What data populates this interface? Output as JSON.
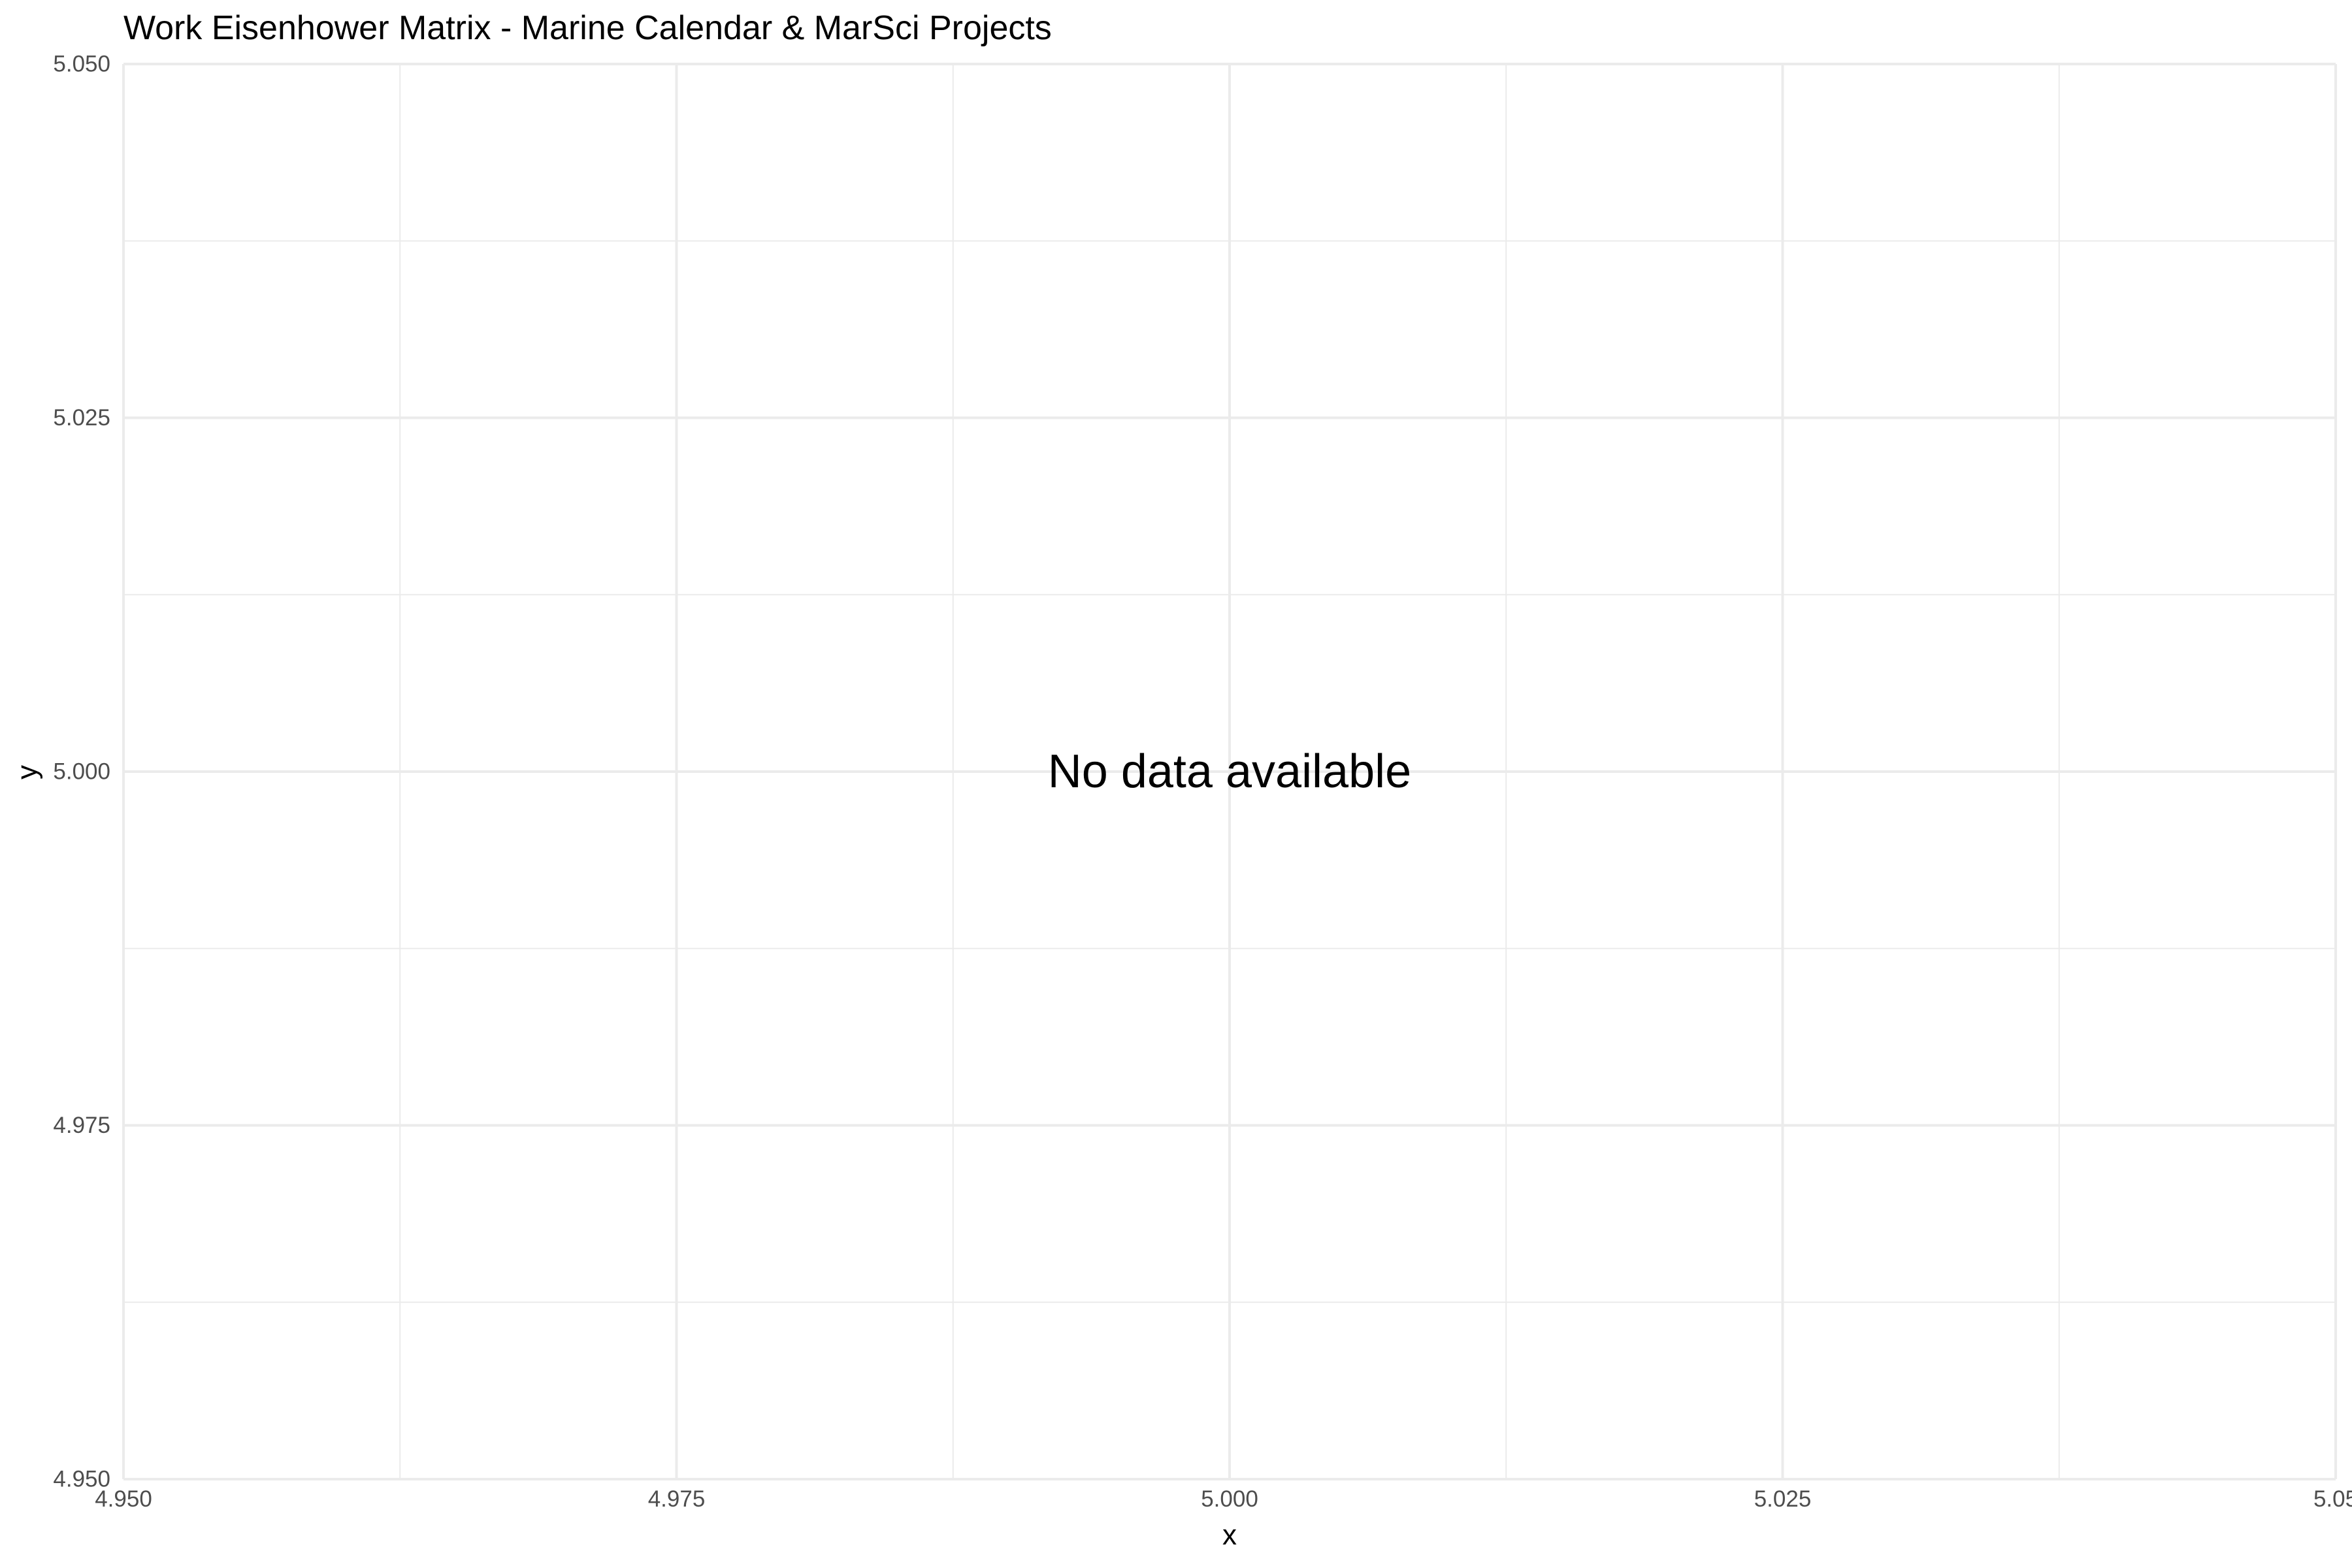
{
  "chart_data": {
    "type": "scatter",
    "title": "Work Eisenhower Matrix - Marine Calendar & MarSci Projects",
    "xlabel": "x",
    "ylabel": "y",
    "xlim": [
      4.95,
      5.05
    ],
    "ylim": [
      4.95,
      5.05
    ],
    "x_ticks": [
      4.95,
      4.975,
      5.0,
      5.025,
      5.05
    ],
    "y_ticks": [
      4.95,
      4.975,
      5.0,
      5.025,
      5.05
    ],
    "x_tick_labels": [
      "4.950",
      "4.975",
      "5.000",
      "5.025",
      "5.05"
    ],
    "y_tick_labels": [
      "4.950",
      "4.975",
      "5.000",
      "5.025",
      "5.050"
    ],
    "grid": true,
    "legend": "none",
    "series": [],
    "annotations": [
      {
        "text": "No data available",
        "x": 5.0,
        "y": 5.0
      }
    ],
    "colors": {
      "background": "#ffffff",
      "grid": "#ebebeb",
      "tick_text": "#4d4d4d",
      "text": "#000000"
    }
  }
}
